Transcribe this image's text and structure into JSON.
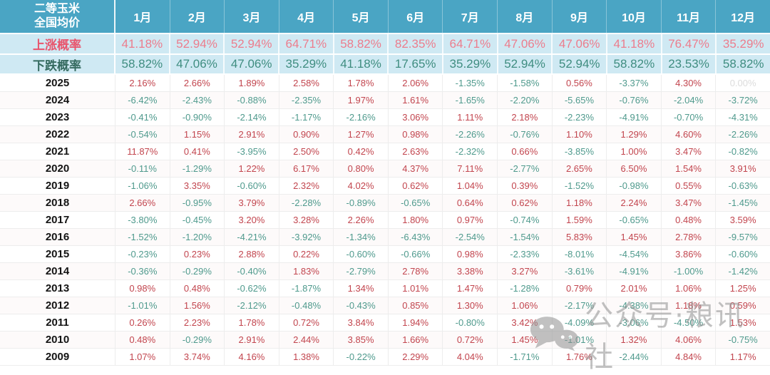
{
  "colors": {
    "header_bg": "#4aa5c4",
    "prob_row_bg": "#cfe9f3",
    "rise_label": "#e8556d",
    "fall_label": "#356b60",
    "rise_value": "#ec7d8d",
    "fall_value": "#3f8d80",
    "positive_value": "#c2454e",
    "negative_value": "#4f9a8d",
    "muted_value": "#dcdcdc"
  },
  "watermark": {
    "icon": "wechat-icon",
    "text": "公众号·粮讯社"
  },
  "chart_data": {
    "type": "table",
    "title": "二等玉米 全国均价",
    "title_lines": [
      "二等玉米",
      "全国均价"
    ],
    "columns": [
      "1月",
      "2月",
      "3月",
      "4月",
      "5月",
      "6月",
      "7月",
      "8月",
      "9月",
      "10月",
      "11月",
      "12月"
    ],
    "rows": [
      {
        "label": "上涨概率",
        "kind": "rise",
        "values": [
          "41.18%",
          "52.94%",
          "52.94%",
          "64.71%",
          "58.82%",
          "82.35%",
          "64.71%",
          "47.06%",
          "47.06%",
          "41.18%",
          "76.47%",
          "35.29%"
        ]
      },
      {
        "label": "下跌概率",
        "kind": "fall",
        "values": [
          "58.82%",
          "47.06%",
          "47.06%",
          "35.29%",
          "41.18%",
          "17.65%",
          "35.29%",
          "52.94%",
          "52.94%",
          "58.82%",
          "23.53%",
          "58.82%"
        ]
      },
      {
        "label": "2025",
        "kind": "year",
        "values": [
          "2.16%",
          "2.66%",
          "1.89%",
          "2.58%",
          "1.78%",
          "2.06%",
          "-1.35%",
          "-1.58%",
          "0.56%",
          "-3.37%",
          "4.30%",
          "0.00%"
        ]
      },
      {
        "label": "2024",
        "kind": "year",
        "values": [
          "-6.42%",
          "-2.43%",
          "-0.88%",
          "-2.35%",
          "1.97%",
          "1.61%",
          "-1.65%",
          "-2.20%",
          "-5.65%",
          "-0.76%",
          "-2.04%",
          "-3.72%"
        ]
      },
      {
        "label": "2023",
        "kind": "year",
        "values": [
          "-0.41%",
          "-0.90%",
          "-2.14%",
          "-1.17%",
          "-2.16%",
          "3.06%",
          "1.11%",
          "2.18%",
          "-2.23%",
          "-4.91%",
          "-0.70%",
          "-4.31%"
        ]
      },
      {
        "label": "2022",
        "kind": "year",
        "values": [
          "-0.54%",
          "1.15%",
          "2.91%",
          "0.90%",
          "1.27%",
          "0.98%",
          "-2.26%",
          "-0.76%",
          "1.10%",
          "1.29%",
          "4.60%",
          "-2.26%"
        ]
      },
      {
        "label": "2021",
        "kind": "year",
        "values": [
          "11.87%",
          "0.41%",
          "-3.95%",
          "2.50%",
          "0.42%",
          "2.63%",
          "-2.32%",
          "0.66%",
          "-3.85%",
          "1.00%",
          "3.47%",
          "-0.82%"
        ]
      },
      {
        "label": "2020",
        "kind": "year",
        "values": [
          "-0.11%",
          "-1.29%",
          "1.22%",
          "6.17%",
          "0.80%",
          "4.37%",
          "7.11%",
          "-2.77%",
          "2.65%",
          "6.50%",
          "1.54%",
          "3.91%"
        ]
      },
      {
        "label": "2019",
        "kind": "year",
        "values": [
          "-1.06%",
          "3.35%",
          "-0.60%",
          "2.32%",
          "4.02%",
          "0.62%",
          "1.04%",
          "0.39%",
          "-1.52%",
          "-0.98%",
          "0.55%",
          "-0.63%"
        ]
      },
      {
        "label": "2018",
        "kind": "year",
        "values": [
          "2.66%",
          "-0.95%",
          "3.79%",
          "-2.28%",
          "-0.89%",
          "-0.65%",
          "0.64%",
          "0.62%",
          "1.18%",
          "2.24%",
          "3.47%",
          "-1.45%"
        ]
      },
      {
        "label": "2017",
        "kind": "year",
        "values": [
          "-3.80%",
          "-0.45%",
          "3.20%",
          "3.28%",
          "2.26%",
          "1.80%",
          "0.97%",
          "-0.74%",
          "1.59%",
          "-0.65%",
          "0.48%",
          "3.59%"
        ]
      },
      {
        "label": "2016",
        "kind": "year",
        "values": [
          "-1.52%",
          "-1.20%",
          "-4.21%",
          "-3.92%",
          "-1.34%",
          "-6.43%",
          "-2.54%",
          "-1.54%",
          "5.83%",
          "1.45%",
          "2.78%",
          "-9.57%"
        ]
      },
      {
        "label": "2015",
        "kind": "year",
        "values": [
          "-0.23%",
          "0.23%",
          "2.88%",
          "0.22%",
          "-0.60%",
          "-0.66%",
          "0.98%",
          "-2.33%",
          "-8.01%",
          "-4.54%",
          "3.86%",
          "-0.60%"
        ]
      },
      {
        "label": "2014",
        "kind": "year",
        "values": [
          "-0.36%",
          "-0.29%",
          "-0.40%",
          "1.83%",
          "-2.79%",
          "2.78%",
          "3.38%",
          "3.27%",
          "-3.61%",
          "-4.91%",
          "-1.00%",
          "-1.42%"
        ]
      },
      {
        "label": "2013",
        "kind": "year",
        "values": [
          "0.98%",
          "0.48%",
          "-0.62%",
          "-1.87%",
          "1.34%",
          "1.01%",
          "1.47%",
          "-1.28%",
          "0.79%",
          "2.01%",
          "1.06%",
          "1.25%"
        ]
      },
      {
        "label": "2012",
        "kind": "year",
        "values": [
          "-1.01%",
          "1.56%",
          "-2.12%",
          "-0.48%",
          "-0.43%",
          "0.85%",
          "1.30%",
          "1.06%",
          "-2.17%",
          "-4.38%",
          "1.18%",
          "0.59%"
        ]
      },
      {
        "label": "2011",
        "kind": "year",
        "values": [
          "0.26%",
          "2.23%",
          "1.78%",
          "0.72%",
          "3.84%",
          "1.94%",
          "-0.80%",
          "3.42%",
          "-4.09%",
          "-3.06%",
          "-4.50%",
          "1.53%"
        ]
      },
      {
        "label": "2010",
        "kind": "year",
        "values": [
          "0.48%",
          "-0.29%",
          "2.91%",
          "2.44%",
          "3.85%",
          "1.66%",
          "0.72%",
          "1.45%",
          "-1.01%",
          "1.32%",
          "4.06%",
          "-0.75%"
        ]
      },
      {
        "label": "2009",
        "kind": "year",
        "values": [
          "1.07%",
          "3.74%",
          "4.16%",
          "1.38%",
          "-0.22%",
          "2.29%",
          "4.04%",
          "-1.71%",
          "1.76%",
          "-2.44%",
          "4.84%",
          "1.17%"
        ]
      }
    ]
  }
}
